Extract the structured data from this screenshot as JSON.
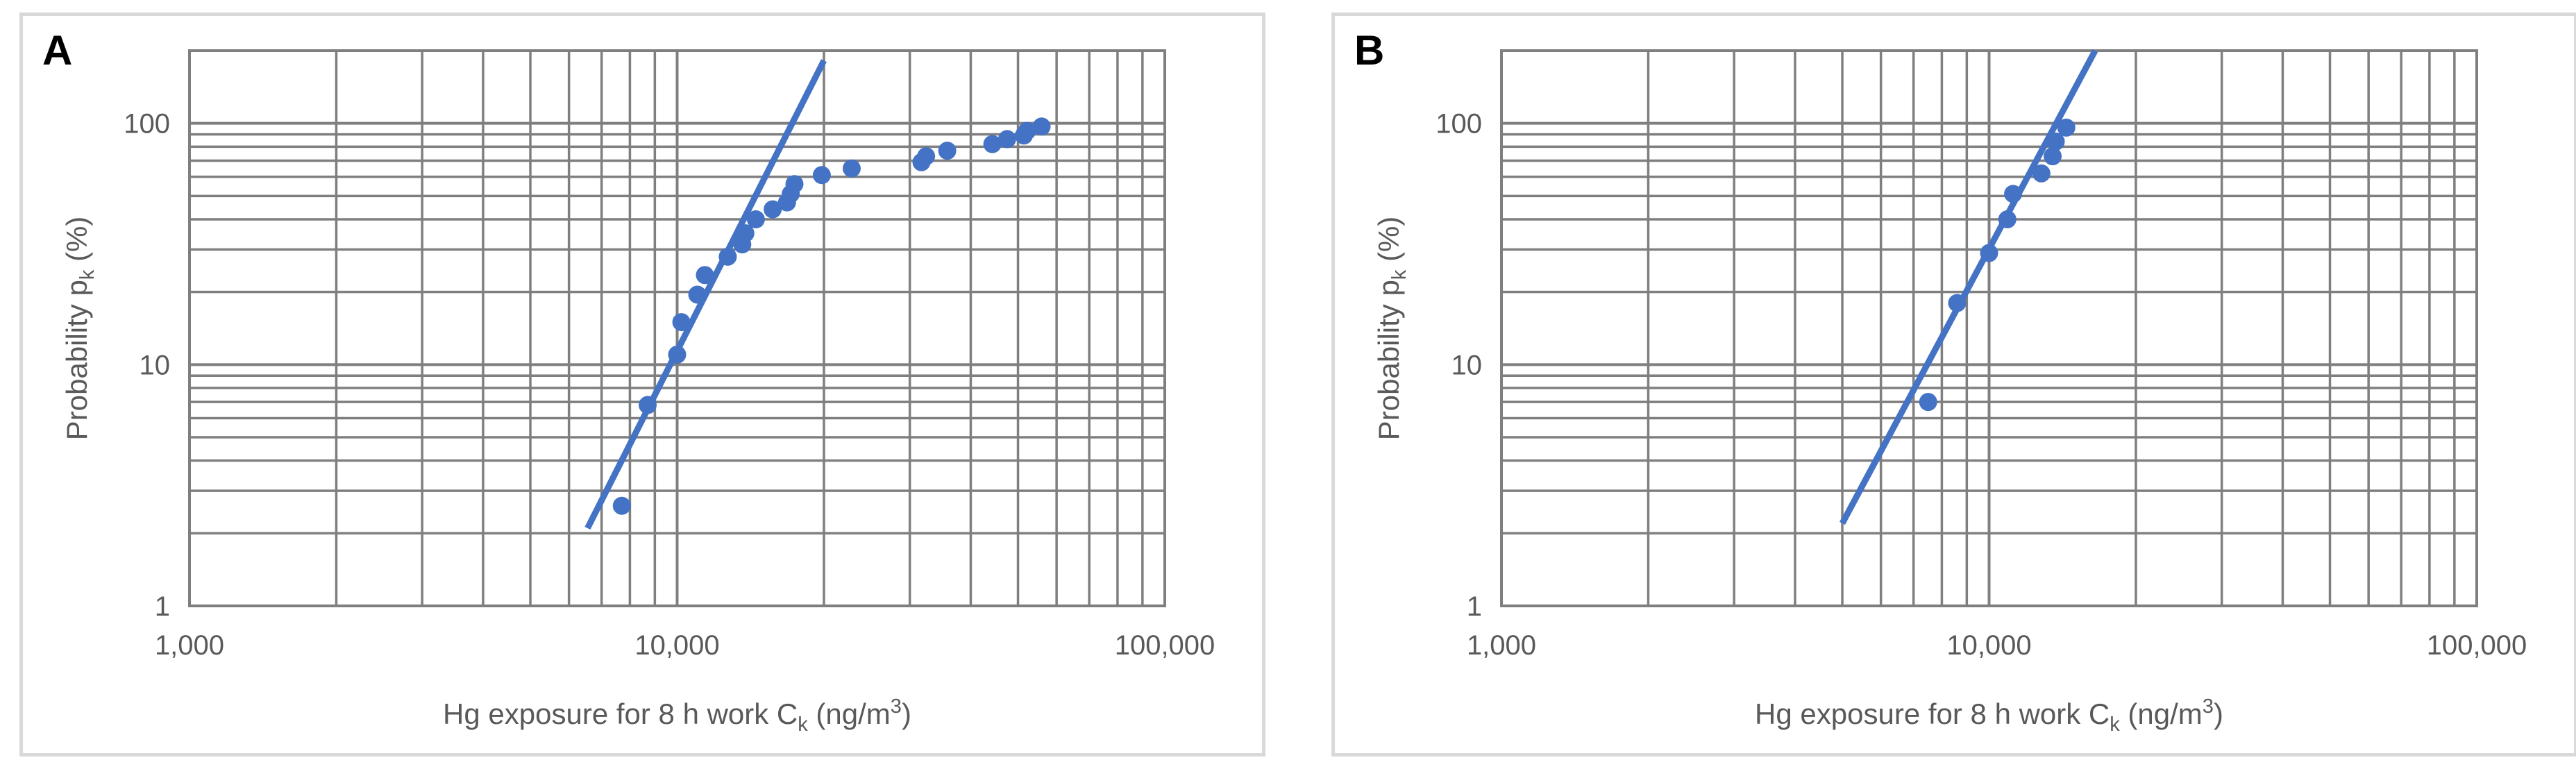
{
  "chart_data": [
    {
      "panel": "A",
      "type": "scatter",
      "xlabel": {
        "main": "Hg exposure for 8 h work C",
        "sub": "k",
        "unit_pre": " (ng/m",
        "unit_sup": "3",
        "unit_post": ")"
      },
      "ylabel": {
        "main": "Probability p",
        "sub": "k",
        "unit": " (%)"
      },
      "x_scale": "log",
      "y_scale": "log",
      "xlim": [
        1000,
        100000
      ],
      "ylim": [
        1,
        200
      ],
      "x_ticks": [
        {
          "value": 1000,
          "label": "1,000"
        },
        {
          "value": 10000,
          "label": "10,000"
        },
        {
          "value": 100000,
          "label": "100,000"
        }
      ],
      "y_ticks": [
        {
          "value": 1,
          "label": "1"
        },
        {
          "value": 10,
          "label": "10"
        },
        {
          "value": 100,
          "label": "100"
        }
      ],
      "grid": true,
      "color": "#4472c4",
      "series": [
        {
          "points": [
            [
              7700,
              2.6
            ],
            [
              8700,
              6.8
            ],
            [
              10000,
              11
            ],
            [
              10200,
              15
            ],
            [
              11000,
              19.5
            ],
            [
              11400,
              23.5
            ],
            [
              12700,
              28
            ],
            [
              13600,
              31.5
            ],
            [
              13800,
              35
            ],
            [
              14500,
              40
            ],
            [
              15700,
              44
            ],
            [
              16800,
              47
            ],
            [
              17100,
              51
            ],
            [
              17400,
              56
            ],
            [
              19800,
              61
            ],
            [
              22800,
              65
            ],
            [
              31700,
              69
            ],
            [
              32400,
              73
            ],
            [
              35800,
              77
            ],
            [
              44300,
              82
            ],
            [
              47500,
              86
            ],
            [
              51400,
              89
            ],
            [
              52200,
              93
            ],
            [
              55900,
              97
            ]
          ],
          "trendline": [
            [
              6550,
              2.1
            ],
            [
              20000,
              182
            ]
          ]
        }
      ]
    },
    {
      "panel": "B",
      "type": "scatter",
      "xlabel": {
        "main": "Hg exposure for 8 h work C",
        "sub": "k",
        "unit_pre": " (ng/m",
        "unit_sup": "3",
        "unit_post": ")"
      },
      "ylabel": {
        "main": "Probability p",
        "sub": "k",
        "unit": " (%)"
      },
      "x_scale": "log",
      "y_scale": "log",
      "xlim": [
        1000,
        100000
      ],
      "ylim": [
        1,
        200
      ],
      "x_ticks": [
        {
          "value": 1000,
          "label": "1,000"
        },
        {
          "value": 10000,
          "label": "10,000"
        },
        {
          "value": 100000,
          "label": "100,000"
        }
      ],
      "y_ticks": [
        {
          "value": 1,
          "label": "1"
        },
        {
          "value": 10,
          "label": "10"
        },
        {
          "value": 100,
          "label": "100"
        }
      ],
      "grid": true,
      "color": "#4472c4",
      "series": [
        {
          "points": [
            [
              7500,
              7
            ],
            [
              8600,
              18
            ],
            [
              10000,
              29
            ],
            [
              10900,
              40
            ],
            [
              11200,
              51
            ],
            [
              12800,
              62
            ],
            [
              13500,
              73
            ],
            [
              13700,
              84
            ],
            [
              14400,
              96
            ]
          ],
          "trendline": [
            [
              5000,
              2.2
            ],
            [
              16500,
              200
            ]
          ]
        }
      ]
    }
  ]
}
